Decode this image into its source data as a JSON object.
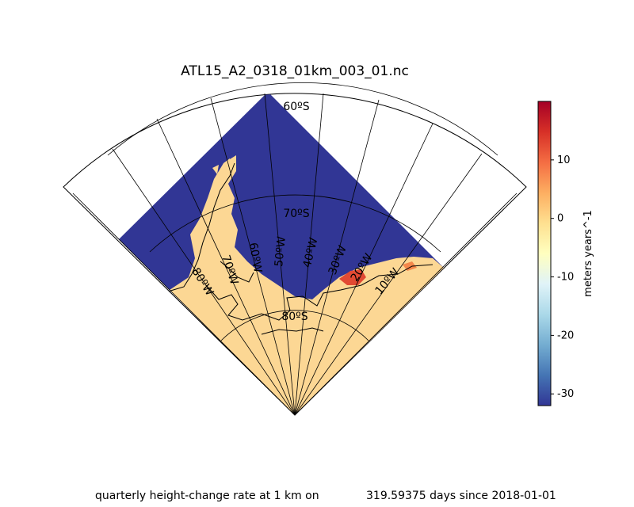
{
  "title": "ATL15_A2_0318_01km_003_01.nc",
  "footer": {
    "caption": "quarterly height-change rate at 1 km on",
    "time": "319.59375 days since 2018-01-01"
  },
  "latitude_labels": [
    "60ºS",
    "70ºS",
    "80ºS"
  ],
  "longitude_labels": [
    "80ºW",
    "70ºW",
    "60ºW",
    "50ºW",
    "40ºW",
    "30ºW",
    "20ºW",
    "10ºW"
  ],
  "colorbar": {
    "label": "meters years^-1",
    "min": -32,
    "max": 20,
    "ticks": [
      10,
      0,
      -10,
      -20,
      -30
    ],
    "colormap": "RdYlBu_r",
    "stops": [
      "#313695",
      "#4575b4",
      "#74add1",
      "#abd9e9",
      "#e0f3f8",
      "#ffffbf",
      "#fee090",
      "#fdae61",
      "#f46d43",
      "#d73027",
      "#a50026"
    ]
  },
  "colors": {
    "ocean_fill": "#313695",
    "ice_fill": "#fcd794",
    "melt_highlight": "#e24a33"
  }
}
